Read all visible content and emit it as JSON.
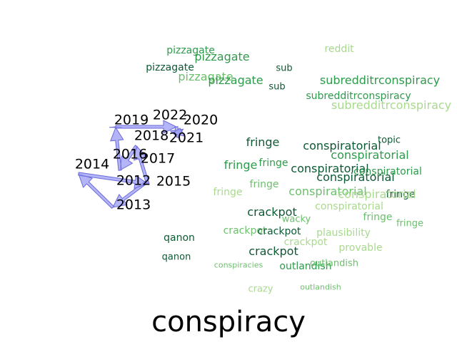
{
  "title": "conspiracy",
  "colors": {
    "dark": "#0b5a33",
    "mid": "#2e9a4c",
    "light": "#6cbf6c",
    "pale": "#a9d98f",
    "arrow_fill": "#9b9bf5",
    "arrow_stroke": "#6b6bd9"
  },
  "years": [
    "2012",
    "2013",
    "2014",
    "2015",
    "2016",
    "2017",
    "2018",
    "2019",
    "2020",
    "2021",
    "2022"
  ],
  "year_order": [
    "2012",
    "2013",
    "2014",
    "2015",
    "2016",
    "2017",
    "2018",
    "2019",
    "2020",
    "2021",
    "2022"
  ],
  "words": [
    {
      "text": "pizzagate",
      "tone": "mid"
    },
    {
      "text": "pizzagate",
      "tone": "mid"
    },
    {
      "text": "pizzagate",
      "tone": "dark"
    },
    {
      "text": "pizzagate",
      "tone": "light"
    },
    {
      "text": "pizzagate",
      "tone": "mid"
    },
    {
      "text": "reddit",
      "tone": "pale"
    },
    {
      "text": "sub",
      "tone": "dark"
    },
    {
      "text": "sub",
      "tone": "dark"
    },
    {
      "text": "subredditrconspiracy",
      "tone": "mid"
    },
    {
      "text": "subredditrconspiracy",
      "tone": "mid"
    },
    {
      "text": "subredditrconspiracy",
      "tone": "pale"
    },
    {
      "text": "fringe",
      "tone": "dark"
    },
    {
      "text": "fringe",
      "tone": "mid"
    },
    {
      "text": "fringe",
      "tone": "mid"
    },
    {
      "text": "fringe",
      "tone": "pale"
    },
    {
      "text": "fringe",
      "tone": "light"
    },
    {
      "text": "fringe",
      "tone": "dark"
    },
    {
      "text": "fringe",
      "tone": "light"
    },
    {
      "text": "fringe",
      "tone": "light"
    },
    {
      "text": "conspiratorial",
      "tone": "dark"
    },
    {
      "text": "conspiratorial",
      "tone": "mid"
    },
    {
      "text": "conspiratorial",
      "tone": "dark"
    },
    {
      "text": "conspiratorial",
      "tone": "dark"
    },
    {
      "text": "conspiratorial",
      "tone": "mid"
    },
    {
      "text": "conspiratorial",
      "tone": "light"
    },
    {
      "text": "conspiratorial",
      "tone": "pale"
    },
    {
      "text": "conspiratorial",
      "tone": "pale"
    },
    {
      "text": "topic",
      "tone": "dark"
    },
    {
      "text": "crackpot",
      "tone": "dark"
    },
    {
      "text": "crackpot",
      "tone": "light"
    },
    {
      "text": "crackpot",
      "tone": "dark"
    },
    {
      "text": "crackpot",
      "tone": "pale"
    },
    {
      "text": "crackpot",
      "tone": "dark"
    },
    {
      "text": "wacky",
      "tone": "light"
    },
    {
      "text": "qanon",
      "tone": "dark"
    },
    {
      "text": "qanon",
      "tone": "dark"
    },
    {
      "text": "plausibility",
      "tone": "pale"
    },
    {
      "text": "provable",
      "tone": "pale"
    },
    {
      "text": "conspiracies",
      "tone": "light"
    },
    {
      "text": "outlandish",
      "tone": "mid"
    },
    {
      "text": "outlandish",
      "tone": "light"
    },
    {
      "text": "outlandish",
      "tone": "light"
    },
    {
      "text": "crazy",
      "tone": "pale"
    }
  ]
}
